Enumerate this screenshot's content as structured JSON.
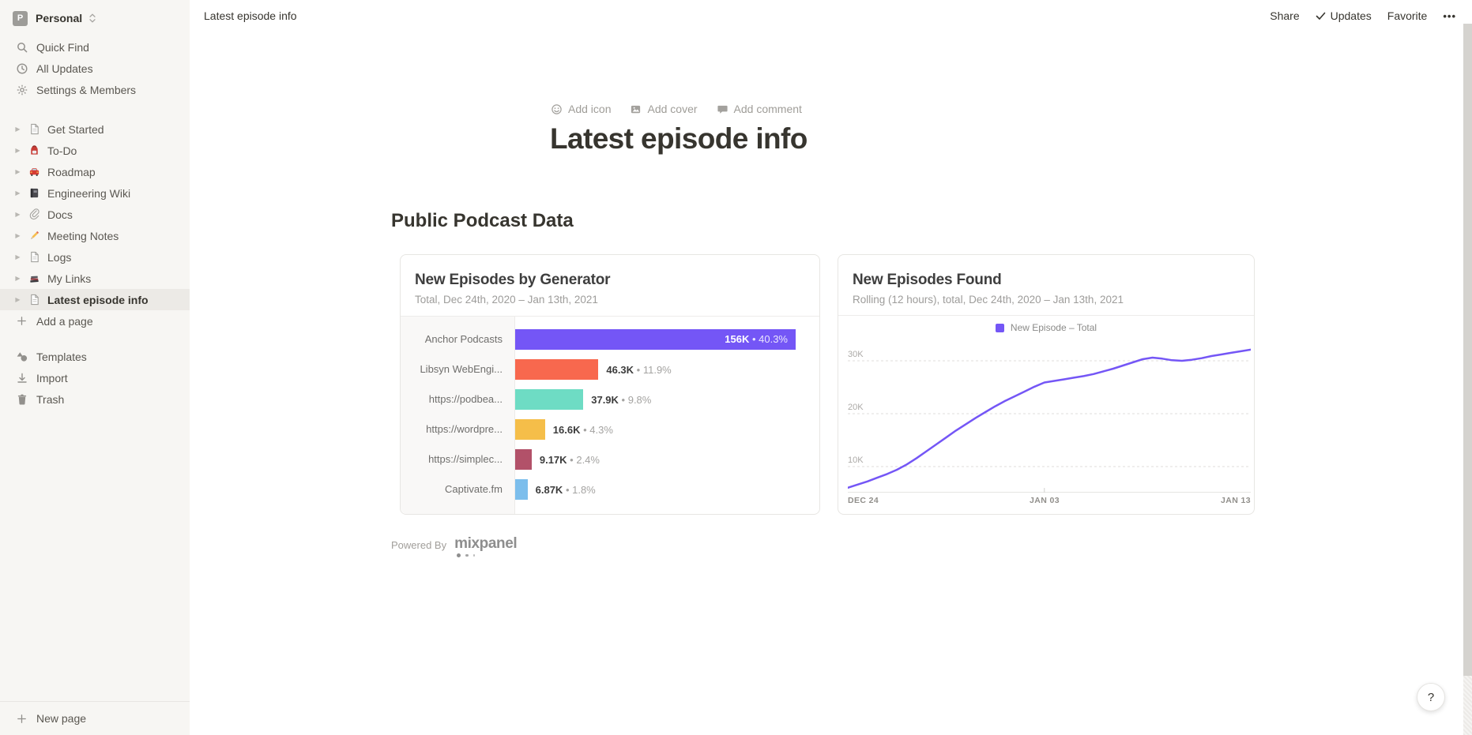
{
  "workspace": {
    "name": "Personal",
    "avatar_letter": "P"
  },
  "sidebar": {
    "menu": [
      {
        "icon": "search",
        "label": "Quick Find"
      },
      {
        "icon": "clock",
        "label": "All Updates"
      },
      {
        "icon": "gear",
        "label": "Settings & Members"
      }
    ],
    "pages": [
      {
        "icon": "page",
        "label": "Get Started"
      },
      {
        "icon": "backpack",
        "label": "To-Do"
      },
      {
        "icon": "car",
        "label": "Roadmap"
      },
      {
        "icon": "notebook",
        "label": "Engineering Wiki"
      },
      {
        "icon": "paperclip",
        "label": "Docs"
      },
      {
        "icon": "pencil",
        "label": "Meeting Notes"
      },
      {
        "icon": "page",
        "label": "Logs"
      },
      {
        "icon": "books",
        "label": "My Links"
      },
      {
        "icon": "page",
        "label": "Latest episode info",
        "selected": true
      }
    ],
    "add_page_label": "Add a page",
    "tools": [
      {
        "icon": "templates",
        "label": "Templates"
      },
      {
        "icon": "import",
        "label": "Import"
      },
      {
        "icon": "trash",
        "label": "Trash"
      }
    ],
    "new_page_label": "New page"
  },
  "topbar": {
    "breadcrumb": "Latest episode info",
    "share_label": "Share",
    "updates_label": "Updates",
    "favorite_label": "Favorite",
    "more_label": "•••"
  },
  "page": {
    "add_icon_label": "Add icon",
    "add_cover_label": "Add cover",
    "add_comment_label": "Add comment",
    "title": "Latest episode info",
    "section_heading": "Public Podcast Data",
    "powered_by_label": "Powered By",
    "brand_name": "mixpanel",
    "help_label": "?"
  },
  "chart_data": [
    {
      "type": "bar",
      "orientation": "horizontal",
      "title": "New Episodes by Generator",
      "subtitle": "Total, Dec 24th, 2020 – Jan 13th, 2021",
      "categories": [
        "Anchor Podcasts",
        "Libsyn WebEngi...",
        "https://podbea...",
        "https://wordpre...",
        "https://simplec...",
        "Captivate.fm"
      ],
      "values": [
        156000,
        46300,
        37900,
        16600,
        9170,
        6870
      ],
      "value_labels": [
        "156K",
        "46.3K",
        "37.9K",
        "16.6K",
        "9.17K",
        "6.87K"
      ],
      "percent_labels": [
        "40.3%",
        "11.9%",
        "9.8%",
        "4.3%",
        "2.4%",
        "1.8%"
      ],
      "bar_colors": [
        "#7456F6",
        "#F8684E",
        "#6EDCC4",
        "#F5BE49",
        "#B25169",
        "#7CBEEC"
      ],
      "separator": "•"
    },
    {
      "type": "line",
      "title": "New Episodes Found",
      "subtitle": "Rolling (12 hours), total, Dec 24th, 2020 – Jan 13th, 2021",
      "legend": [
        {
          "label": "New Episode – Total",
          "color": "#7456F6"
        }
      ],
      "grid": "dashed-horizontal",
      "y_ticks": [
        "10K",
        "20K",
        "30K"
      ],
      "y_tick_values_k": [
        10,
        20,
        30
      ],
      "x_ticks": [
        "DEC 24",
        "JAN 03",
        "JAN 13"
      ],
      "x_tick_days": [
        0,
        10,
        20
      ],
      "x_range_days": [
        0,
        20.5
      ],
      "series": [
        {
          "name": "New Episode – Total",
          "color": "#7456F6",
          "x_start_day": 0,
          "x_step_days": 0.5,
          "values_k": [
            6.0,
            6.6,
            7.2,
            7.9,
            8.6,
            9.4,
            10.4,
            11.6,
            12.9,
            14.2,
            15.5,
            16.8,
            18.0,
            19.2,
            20.3,
            21.4,
            22.4,
            23.3,
            24.2,
            25.1,
            25.9,
            26.2,
            26.5,
            26.8,
            27.1,
            27.5,
            28.0,
            28.5,
            29.1,
            29.7,
            30.3,
            30.6,
            30.4,
            30.1,
            30.0,
            30.2,
            30.5,
            30.9,
            31.2,
            31.5,
            31.8,
            32.1
          ]
        }
      ]
    }
  ]
}
